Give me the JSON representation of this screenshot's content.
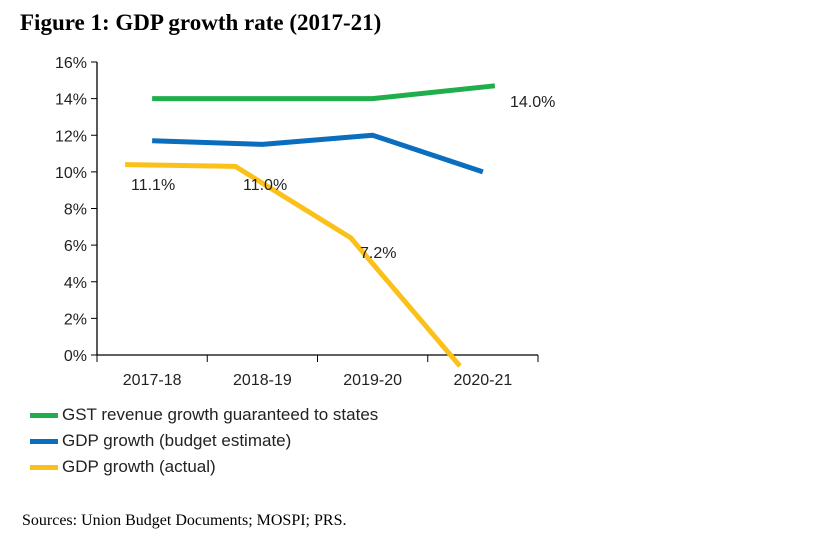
{
  "title": "Figure 1:  GDP growth rate (2017-21)",
  "sources": "Sources:  Union Budget Documents; MOSPI; PRS.",
  "chart_data": {
    "type": "line",
    "title": "Figure 1:  GDP growth rate (2017-21)",
    "categories": [
      "2017-18",
      "2018-19",
      "2019-20",
      "2020-21"
    ],
    "ylim": [
      0,
      16
    ],
    "yticks": [
      "0%",
      "2%",
      "4%",
      "6%",
      "8%",
      "10%",
      "12%",
      "14%",
      "16%"
    ],
    "grid": false,
    "legend": "bottom-left",
    "series": [
      {
        "name": "GST revenue growth guaranteed to states",
        "color": "#1fae4b",
        "values": [
          14.0,
          14.0,
          14.0,
          14.7
        ]
      },
      {
        "name": "GDP growth (budget estimate)",
        "color": "#0b6dbd",
        "values": [
          11.7,
          11.5,
          12.0,
          10.0
        ]
      },
      {
        "name": "GDP growth (actual)",
        "color": "#fbc11a",
        "values": [
          10.4,
          10.3,
          6.4,
          -0.6
        ]
      }
    ],
    "annotations": [
      "11.1%",
      "11.0%",
      "7.2%",
      "14.0%"
    ]
  }
}
